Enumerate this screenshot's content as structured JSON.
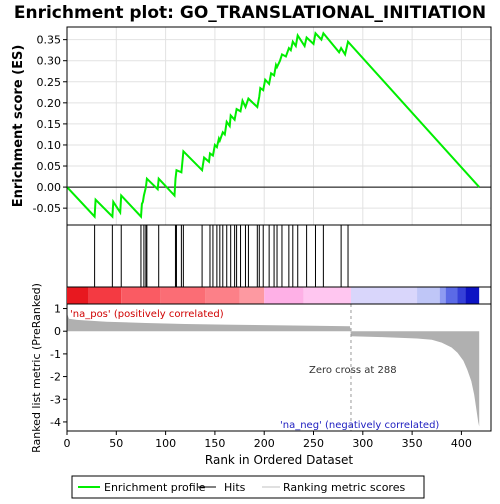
{
  "chart_data": {
    "type": "line",
    "title": "Enrichment plot: GO_TRANSLATIONAL_INITIATION",
    "top_panel": {
      "ylabel": "Enrichment score (ES)",
      "ylim": [
        -0.09,
        0.38
      ],
      "yticks": [
        -0.05,
        0.0,
        0.05,
        0.1,
        0.15,
        0.2,
        0.25,
        0.3,
        0.35
      ],
      "ytick_labels": [
        "-0.05",
        "0.00",
        "0.05",
        "0.10",
        "0.15",
        "0.20",
        "0.25",
        "0.30",
        "0.35"
      ],
      "grid": true,
      "series": [
        {
          "name": "Enrichment profile",
          "color": "#00ee00",
          "x": [
            0,
            28,
            29,
            46,
            47,
            54,
            55,
            75,
            76,
            77,
            78,
            79,
            80,
            81,
            92,
            93,
            109,
            110,
            111,
            116,
            117,
            118,
            137,
            138,
            139,
            144,
            145,
            148,
            150,
            152,
            154,
            155,
            158,
            160,
            162,
            165,
            166,
            170,
            172,
            176,
            178,
            181,
            184,
            193,
            195,
            196,
            199,
            201,
            205,
            207,
            210,
            212,
            213,
            216,
            218,
            222,
            225,
            227,
            229,
            232,
            234,
            241,
            243,
            250,
            252,
            258,
            260,
            276,
            278,
            282,
            285,
            418
          ],
          "y": [
            0.0,
            -0.07,
            -0.03,
            -0.07,
            -0.035,
            -0.06,
            -0.02,
            -0.07,
            -0.04,
            -0.035,
            -0.02,
            -0.01,
            0.0,
            0.02,
            -0.005,
            0.02,
            -0.02,
            0.02,
            0.04,
            0.035,
            0.06,
            0.085,
            0.04,
            0.055,
            0.07,
            0.06,
            0.08,
            0.075,
            0.1,
            0.095,
            0.115,
            0.11,
            0.13,
            0.125,
            0.155,
            0.145,
            0.17,
            0.16,
            0.185,
            0.18,
            0.205,
            0.19,
            0.21,
            0.19,
            0.215,
            0.235,
            0.23,
            0.255,
            0.245,
            0.27,
            0.265,
            0.29,
            0.285,
            0.3,
            0.315,
            0.31,
            0.33,
            0.325,
            0.345,
            0.335,
            0.36,
            0.335,
            0.355,
            0.34,
            0.365,
            0.35,
            0.365,
            0.32,
            0.33,
            0.315,
            0.345,
            0.0
          ]
        }
      ]
    },
    "hits_panel": {
      "hit_positions": [
        28,
        46,
        55,
        75,
        78,
        80,
        81,
        93,
        110,
        111,
        116,
        118,
        137,
        145,
        148,
        152,
        155,
        158,
        162,
        166,
        170,
        172,
        176,
        181,
        184,
        193,
        195,
        199,
        205,
        210,
        213,
        218,
        225,
        229,
        234,
        243,
        252,
        260,
        278,
        285
      ],
      "hit_color": "#000000",
      "colorbar": {
        "segments": [
          {
            "x0": 0,
            "x1": 22,
            "color": "#e8181f"
          },
          {
            "x0": 22,
            "x1": 55,
            "color": "#f43a42"
          },
          {
            "x0": 55,
            "x1": 95,
            "color": "#fa5b63"
          },
          {
            "x0": 95,
            "x1": 140,
            "color": "#fb6d75"
          },
          {
            "x0": 140,
            "x1": 175,
            "color": "#fc8088"
          },
          {
            "x0": 175,
            "x1": 200,
            "color": "#fd99a1"
          },
          {
            "x0": 200,
            "x1": 240,
            "color": "#feb0e6"
          },
          {
            "x0": 240,
            "x1": 288,
            "color": "#ffc6f0"
          },
          {
            "x0": 288,
            "x1": 355,
            "color": "#d9d6fb"
          },
          {
            "x0": 355,
            "x1": 378,
            "color": "#bfc6f7"
          },
          {
            "x0": 378,
            "x1": 384,
            "color": "#8e9bf2"
          },
          {
            "x0": 384,
            "x1": 396,
            "color": "#5b6ae6"
          },
          {
            "x0": 396,
            "x1": 404,
            "color": "#3540d8"
          },
          {
            "x0": 404,
            "x1": 418,
            "color": "#0d13c4"
          }
        ]
      }
    },
    "bottom_panel": {
      "ylabel": "Ranked list metric (PreRanked)",
      "xlabel": "Rank in Ordered Dataset",
      "ylim": [
        -4.4,
        1.2
      ],
      "yticks": [
        1,
        0,
        -1,
        -2,
        -3,
        -4
      ],
      "ytick_labels": [
        "1",
        "0",
        "-1",
        "-2",
        "-3",
        "-4"
      ],
      "xlim": [
        0,
        430
      ],
      "xticks": [
        0,
        50,
        100,
        150,
        200,
        250,
        300,
        350,
        400
      ],
      "xtick_labels": [
        "0",
        "50",
        "100",
        "150",
        "200",
        "250",
        "300",
        "350",
        "400"
      ],
      "series": [
        {
          "name": "Ranking metric scores",
          "color": "#b0b0b0",
          "x": [
            0,
            2,
            10,
            40,
            80,
            120,
            160,
            200,
            250,
            287,
            288,
            320,
            355,
            370,
            380,
            390,
            396,
            402,
            406,
            410,
            413,
            415,
            417,
            418
          ],
          "y": [
            0.78,
            0.55,
            0.5,
            0.42,
            0.36,
            0.32,
            0.29,
            0.27,
            0.24,
            0.22,
            -0.22,
            -0.26,
            -0.32,
            -0.38,
            -0.5,
            -0.72,
            -0.95,
            -1.3,
            -1.7,
            -2.2,
            -2.8,
            -3.4,
            -4.0,
            -4.2
          ]
        }
      ],
      "annotations": {
        "pos_label": "'na_pos' (positively correlated)",
        "neg_label": "'na_neg' (negatively correlated)",
        "zero_cross": "Zero cross at 288",
        "zero_cross_x": 288
      }
    },
    "legend": {
      "items": [
        {
          "label": "Enrichment profile",
          "color": "#00ee00"
        },
        {
          "label": "Hits",
          "color": "#000000"
        },
        {
          "label": "Ranking metric scores",
          "color": "#c0c0c0"
        }
      ]
    }
  }
}
